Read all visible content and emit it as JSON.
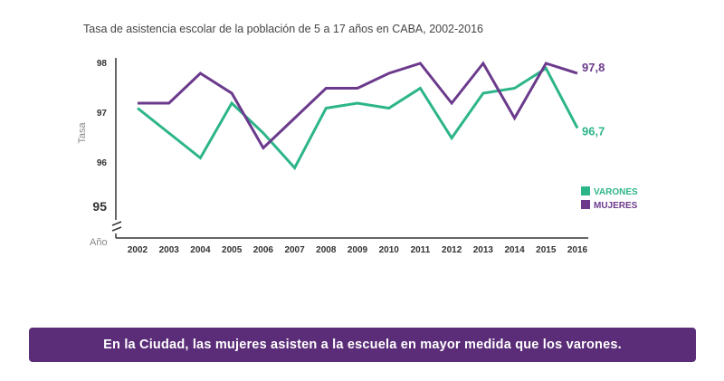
{
  "chart_data": {
    "type": "line",
    "title": "Tasa de asistencia escolar de la población de 5 a 17 años en CABA, 2002-2016",
    "xlabel": "Año",
    "ylabel": "Tasa",
    "categories": [
      "2002",
      "2003",
      "2004",
      "2005",
      "2006",
      "2007",
      "2008",
      "2009",
      "2010",
      "2011",
      "2012",
      "2013",
      "2014",
      "2015",
      "2016"
    ],
    "ylim": [
      95,
      98
    ],
    "yticks": [
      "98",
      "97",
      "96",
      "95"
    ],
    "axis_break": true,
    "grid": false,
    "legend_position": "right",
    "series": [
      {
        "name": "VARONES",
        "color": "#2db58a",
        "values": [
          97.1,
          96.6,
          96.1,
          97.2,
          96.6,
          95.9,
          97.1,
          97.2,
          97.1,
          97.5,
          96.5,
          97.4,
          97.5,
          97.9,
          96.7
        ],
        "end_label": "96,7"
      },
      {
        "name": "MUJERES",
        "color": "#6b3a8c",
        "values": [
          97.2,
          97.2,
          97.8,
          97.4,
          96.3,
          96.9,
          97.5,
          97.5,
          97.8,
          98.0,
          97.2,
          98.0,
          96.9,
          98.0,
          97.8
        ],
        "end_label": "97,8"
      }
    ]
  },
  "banner": {
    "text": "En la Ciudad, las mujeres asisten a la escuela en mayor medida que los varones.",
    "color": "#5b2d78"
  }
}
